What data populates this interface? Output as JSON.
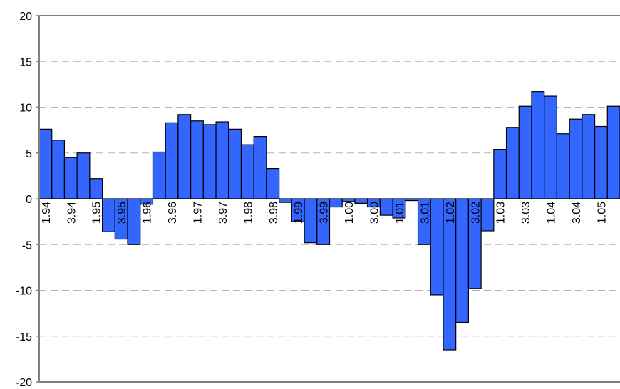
{
  "chart_data": {
    "type": "bar",
    "title": "",
    "xlabel": "",
    "ylabel": "",
    "ylim": [
      -20,
      20
    ],
    "yticks": [
      20,
      15,
      10,
      5,
      0,
      -5,
      -10,
      -15,
      -20
    ],
    "grid": true,
    "colors": {
      "bar_fill": "#3366FF",
      "bar_stroke": "#000000",
      "grid": "#B3B3B3",
      "axis": "#808080"
    },
    "values": [
      7.6,
      6.4,
      4.5,
      5.0,
      2.2,
      -3.6,
      -4.4,
      -5.0,
      -0.6,
      5.1,
      8.3,
      9.2,
      8.5,
      8.1,
      8.4,
      7.6,
      5.9,
      6.8,
      3.3,
      -0.4,
      -2.5,
      -4.8,
      -5.0,
      -0.9,
      -0.3,
      -0.5,
      -0.9,
      -1.8,
      -2.1,
      -0.2,
      -5.0,
      -10.5,
      -16.5,
      -13.5,
      -9.8,
      -3.5,
      5.4,
      7.8,
      10.1,
      11.7,
      11.2,
      7.1,
      8.7,
      9.2,
      7.9,
      10.1
    ],
    "x_tick_labels": [
      {
        "index": 0,
        "label": "1.94"
      },
      {
        "index": 2,
        "label": "3.94"
      },
      {
        "index": 4,
        "label": "1.95"
      },
      {
        "index": 6,
        "label": "3.95"
      },
      {
        "index": 8,
        "label": "1.96"
      },
      {
        "index": 10,
        "label": "3.96"
      },
      {
        "index": 12,
        "label": "1.97"
      },
      {
        "index": 14,
        "label": "3.97"
      },
      {
        "index": 16,
        "label": "1.98"
      },
      {
        "index": 18,
        "label": "3.98"
      },
      {
        "index": 20,
        "label": "1.99"
      },
      {
        "index": 22,
        "label": "3.99"
      },
      {
        "index": 24,
        "label": "1.00"
      },
      {
        "index": 26,
        "label": "3.00"
      },
      {
        "index": 28,
        "label": "1.01"
      },
      {
        "index": 30,
        "label": "3.01"
      },
      {
        "index": 32,
        "label": "1.02"
      },
      {
        "index": 34,
        "label": "3.02"
      },
      {
        "index": 36,
        "label": "1.03"
      },
      {
        "index": 38,
        "label": "3.03"
      },
      {
        "index": 40,
        "label": "1.04"
      },
      {
        "index": 42,
        "label": "3.04"
      },
      {
        "index": 44,
        "label": "1.05"
      }
    ]
  }
}
